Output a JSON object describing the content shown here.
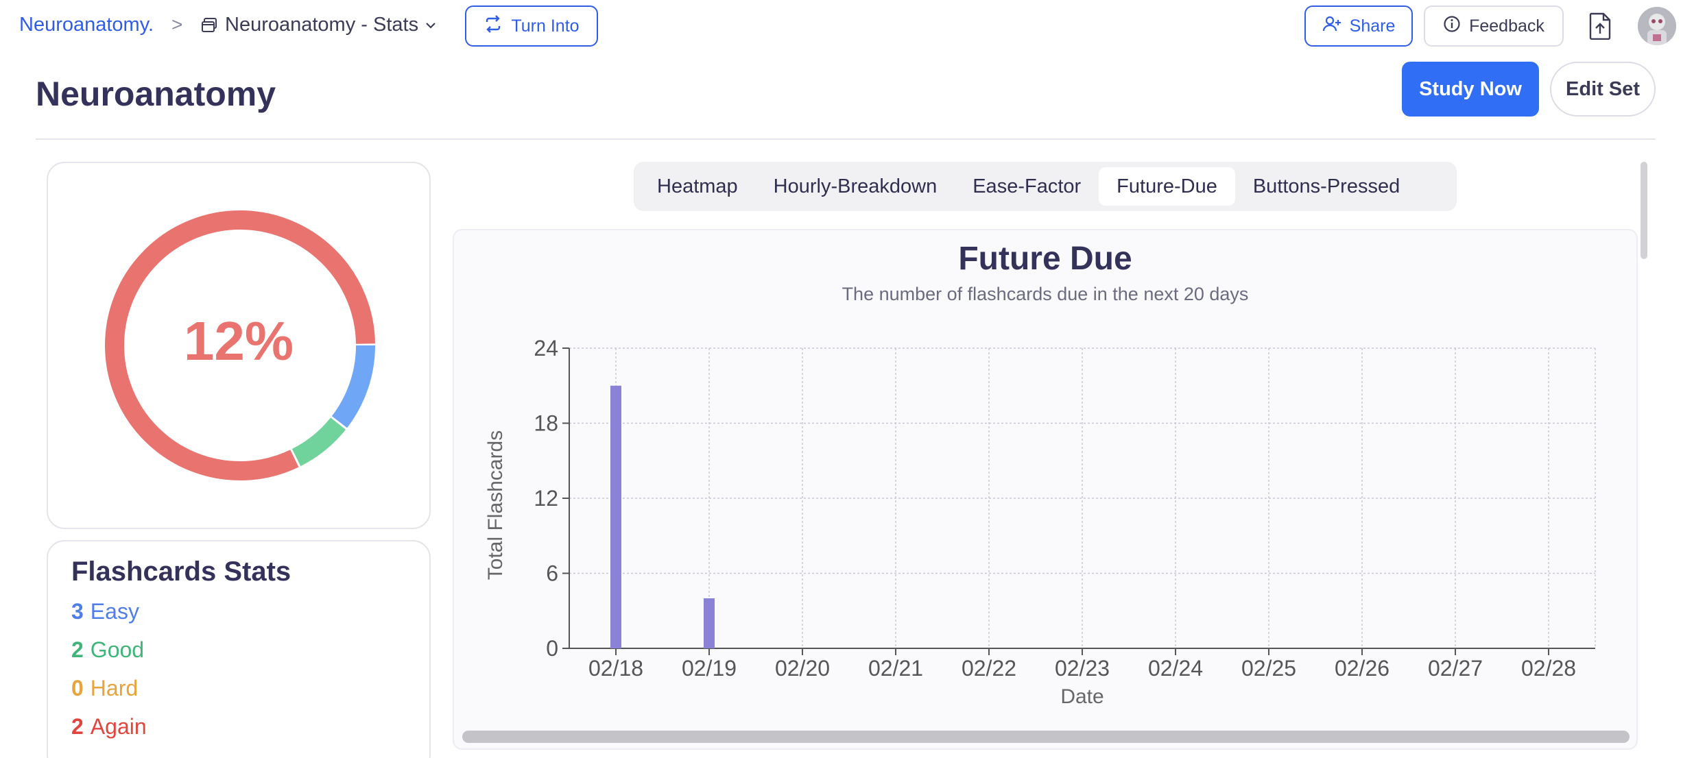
{
  "breadcrumb": {
    "root": "Neuroanatomy.",
    "separator": ">",
    "page": "Neuroanatomy - Stats"
  },
  "toolbar": {
    "turn_into_label": "Turn Into",
    "share_label": "Share",
    "feedback_label": "Feedback"
  },
  "header": {
    "title": "Neuroanatomy",
    "study_now_label": "Study Now",
    "edit_set_label": "Edit Set"
  },
  "progress": {
    "percent_label": "12%",
    "segments": [
      {
        "name": "easy",
        "fraction": 0.1071,
        "color": "#6fa6f5"
      },
      {
        "name": "good",
        "fraction": 0.0714,
        "color": "#6fd39b"
      },
      {
        "name": "again",
        "fraction": 0.8215,
        "color": "#e8736f"
      }
    ]
  },
  "flashcard_stats": {
    "title": "Flashcards Stats",
    "items": [
      {
        "count": "3",
        "label": "Easy",
        "color": "#4f7ee8"
      },
      {
        "count": "2",
        "label": "Good",
        "color": "#3fb57a"
      },
      {
        "count": "0",
        "label": "Hard",
        "color": "#e8a33a"
      },
      {
        "count": "2",
        "label": "Again",
        "color": "#e2453e"
      }
    ]
  },
  "tabs": [
    {
      "label": "Heatmap",
      "active": false
    },
    {
      "label": "Hourly-Breakdown",
      "active": false
    },
    {
      "label": "Ease-Factor",
      "active": false
    },
    {
      "label": "Future-Due",
      "active": true
    },
    {
      "label": "Buttons-Pressed",
      "active": false
    }
  ],
  "chart_data": {
    "type": "bar",
    "title": "Future Due",
    "subtitle": "The number of flashcards due in the next 20 days",
    "xlabel": "Date",
    "ylabel": "Total Flashcards",
    "categories": [
      "02/18",
      "02/19",
      "02/20",
      "02/21",
      "02/22",
      "02/23",
      "02/24",
      "02/25",
      "02/26",
      "02/27",
      "02/28"
    ],
    "values": [
      21,
      4,
      0,
      0,
      0,
      0,
      0,
      0,
      0,
      0,
      0
    ],
    "yticks": [
      0,
      6,
      12,
      18,
      24
    ],
    "ylim": [
      0,
      24
    ],
    "grid": true,
    "bar_color": "#8a82d6"
  }
}
